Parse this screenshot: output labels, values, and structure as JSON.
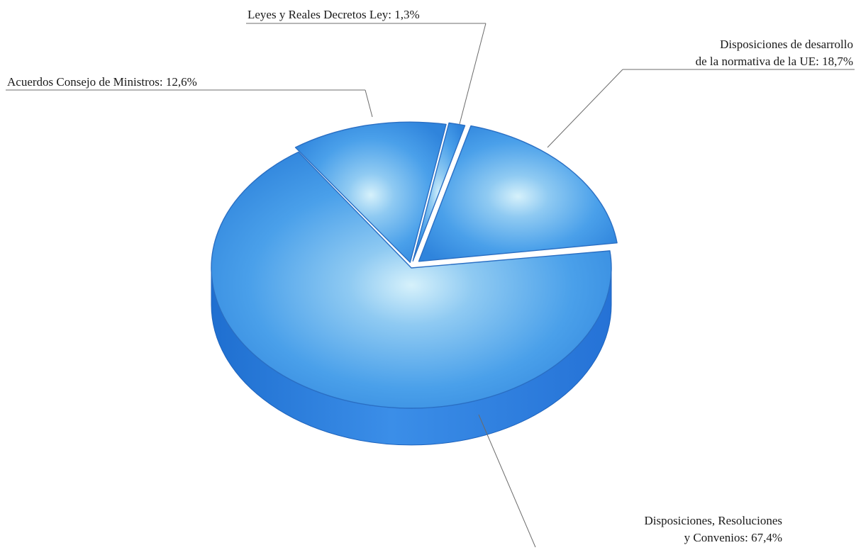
{
  "chart_data": {
    "type": "pie",
    "style": "3d-exploded",
    "color": "#3f93e6",
    "slices": [
      {
        "label": "Disposiciones, Resoluciones y Convenios",
        "value": 67.4,
        "label_lines": [
          "Disposiciones, Resoluciones",
          "y Convenios: 67,4%"
        ]
      },
      {
        "label": "Acuerdos Consejo de Ministros",
        "value": 12.6,
        "label_lines": [
          "Acuerdos Consejo de Ministros: 12,6%"
        ]
      },
      {
        "label": "Leyes y Reales Decretos Ley",
        "value": 1.3,
        "label_lines": [
          "Leyes y Reales Decretos Ley: 1,3%"
        ]
      },
      {
        "label": "Disposiciones de desarrollo de la normativa de la UE",
        "value": 18.7,
        "label_lines": [
          "Disposiciones de desarrollo",
          "de la normativa de la UE: 18,7%"
        ]
      }
    ]
  }
}
